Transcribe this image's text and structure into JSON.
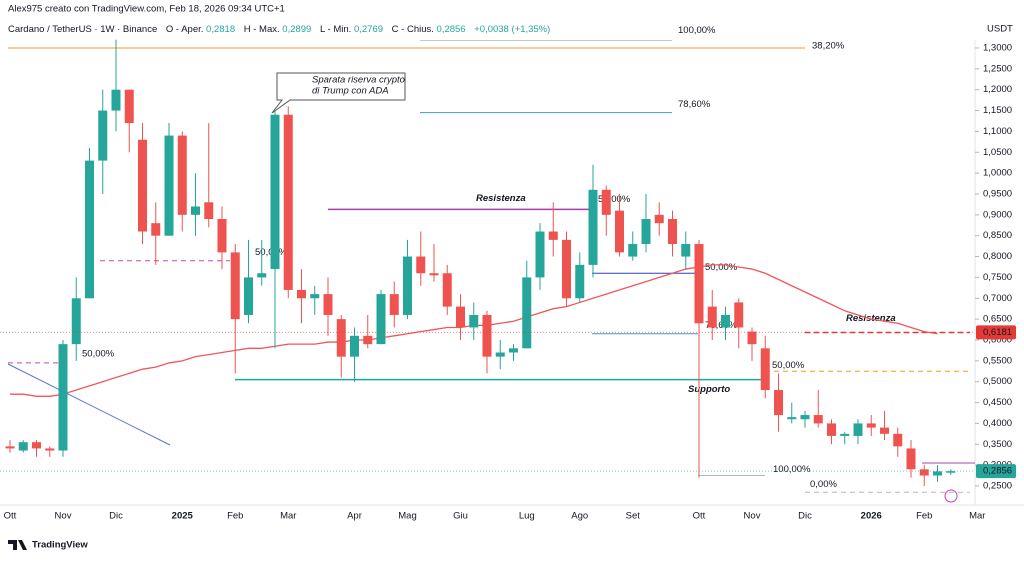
{
  "header": {
    "credit": "Alex975 creato con TradingView.com, Feb 18, 2026 09:34 UTC+1",
    "symbol": "Cardano / TetherUS · 1W · Binance",
    "open_label": "O - Aper.",
    "open": "0,2818",
    "high_label": "H - Max.",
    "high": "0,2899",
    "low_label": "L - Min.",
    "low": "0,2769",
    "close_label": "C - Chius.",
    "close": "0,2856",
    "change": "+0,0038 (+1,35%)"
  },
  "chart_data": {
    "type": "candlestick",
    "axis_unit": "USDT",
    "categories": [
      "Ott",
      null,
      null,
      null,
      "Nov",
      null,
      null,
      null,
      "Dic",
      null,
      null,
      null,
      null,
      "2025",
      null,
      null,
      null,
      "Feb",
      null,
      null,
      null,
      "Mar",
      null,
      null,
      null,
      null,
      "Apr",
      null,
      null,
      null,
      "Mag",
      null,
      null,
      null,
      "Giu",
      null,
      null,
      null,
      null,
      "Lug",
      null,
      null,
      null,
      "Ago",
      null,
      null,
      null,
      "Set",
      null,
      null,
      null,
      null,
      "Ott",
      null,
      null,
      null,
      "Nov",
      null,
      null,
      null,
      "Dic",
      null,
      null,
      null,
      null,
      "2026",
      null,
      null,
      null,
      "Feb",
      null,
      null,
      null,
      "Mar"
    ],
    "open": [
      0.345,
      0.335,
      0.355,
      0.34,
      0.335,
      0.59,
      0.7,
      1.03,
      1.15,
      1.2,
      1.08,
      0.88,
      0.85,
      1.09,
      0.9,
      0.93,
      0.89,
      0.81,
      0.66,
      0.75,
      0.77,
      1.14,
      0.72,
      0.7,
      0.71,
      0.65,
      0.56,
      0.61,
      0.59,
      0.71,
      0.66,
      0.8,
      0.76,
      0.76,
      0.68,
      0.63,
      0.66,
      0.56,
      0.57,
      0.58,
      0.75,
      0.86,
      0.84,
      0.7,
      0.78,
      0.96,
      0.91,
      0.8,
      0.83,
      0.9,
      0.89,
      0.8,
      0.83,
      0.68,
      0.63,
      0.69,
      0.62,
      0.58,
      0.48,
      0.41,
      0.41,
      0.42,
      0.4,
      0.37,
      0.37,
      0.4,
      0.39,
      0.375,
      0.34,
      0.29,
      0.275,
      0.2818,
      null,
      null
    ],
    "high": [
      0.36,
      0.36,
      0.36,
      0.345,
      0.6,
      0.75,
      1.06,
      1.2,
      1.32,
      1.2,
      1.12,
      0.93,
      1.12,
      1.1,
      1.0,
      1.12,
      0.92,
      0.83,
      0.84,
      0.84,
      1.15,
      1.16,
      0.77,
      0.73,
      0.75,
      0.66,
      0.63,
      0.66,
      0.72,
      0.74,
      0.84,
      0.86,
      0.83,
      0.78,
      0.71,
      0.69,
      0.67,
      0.6,
      0.59,
      0.79,
      0.88,
      0.93,
      0.86,
      0.81,
      1.02,
      0.97,
      0.95,
      0.86,
      0.95,
      0.93,
      0.91,
      0.86,
      0.84,
      0.72,
      0.68,
      0.7,
      0.63,
      0.61,
      0.52,
      0.45,
      0.43,
      0.48,
      0.41,
      0.38,
      0.41,
      0.42,
      0.43,
      0.39,
      0.36,
      0.3,
      0.3,
      0.2899,
      null,
      null
    ],
    "low": [
      0.33,
      0.33,
      0.32,
      0.32,
      0.32,
      0.55,
      0.7,
      0.95,
      1.1,
      1.05,
      0.83,
      0.78,
      0.85,
      0.86,
      0.85,
      0.87,
      0.77,
      0.52,
      0.64,
      0.73,
      0.58,
      0.7,
      0.64,
      0.66,
      0.61,
      0.51,
      0.5,
      0.58,
      0.59,
      0.63,
      0.65,
      0.73,
      0.74,
      0.66,
      0.6,
      0.6,
      0.52,
      0.53,
      0.55,
      0.58,
      0.72,
      0.8,
      0.68,
      0.69,
      0.75,
      0.85,
      0.8,
      0.79,
      0.81,
      0.85,
      0.8,
      0.77,
      0.27,
      0.6,
      0.6,
      0.58,
      0.55,
      0.46,
      0.38,
      0.4,
      0.39,
      0.39,
      0.35,
      0.35,
      0.35,
      0.37,
      0.36,
      0.32,
      0.27,
      0.25,
      0.26,
      0.2769,
      null,
      null
    ],
    "close": [
      0.34,
      0.355,
      0.34,
      0.335,
      0.59,
      0.7,
      1.03,
      1.15,
      1.2,
      1.12,
      0.86,
      0.85,
      1.09,
      0.9,
      0.92,
      0.89,
      0.81,
      0.65,
      0.75,
      0.76,
      1.14,
      0.72,
      0.7,
      0.71,
      0.66,
      0.56,
      0.61,
      0.59,
      0.71,
      0.66,
      0.8,
      0.76,
      0.755,
      0.68,
      0.63,
      0.66,
      0.56,
      0.57,
      0.58,
      0.75,
      0.86,
      0.84,
      0.7,
      0.78,
      0.96,
      0.9,
      0.81,
      0.83,
      0.89,
      0.88,
      0.83,
      0.83,
      0.64,
      0.63,
      0.66,
      0.63,
      0.59,
      0.48,
      0.42,
      0.415,
      0.42,
      0.4,
      0.37,
      0.375,
      0.4,
      0.39,
      0.375,
      0.345,
      0.29,
      0.275,
      0.285,
      0.2856,
      null,
      null
    ],
    "up_color": "#26a69a",
    "down_color": "#ef5350",
    "moving_average": {
      "color": "#f0565a",
      "values": [
        0.47,
        0.47,
        0.465,
        0.465,
        0.47,
        0.48,
        0.49,
        0.5,
        0.51,
        0.52,
        0.53,
        0.535,
        0.545,
        0.55,
        0.56,
        0.565,
        0.57,
        0.575,
        0.58,
        0.58,
        0.585,
        0.59,
        0.59,
        0.59,
        0.595,
        0.595,
        0.6,
        0.6,
        0.605,
        0.61,
        0.615,
        0.62,
        0.625,
        0.63,
        0.63,
        0.635,
        0.635,
        0.64,
        0.645,
        0.655,
        0.665,
        0.675,
        0.68,
        0.69,
        0.7,
        0.71,
        0.72,
        0.73,
        0.74,
        0.75,
        0.76,
        0.77,
        0.775,
        0.78,
        0.78,
        0.775,
        0.77,
        0.76,
        0.745,
        0.73,
        0.715,
        0.7,
        0.685,
        0.67,
        0.66,
        0.65,
        0.645,
        0.64,
        0.63,
        0.62,
        0.615,
        null,
        null,
        null
      ]
    },
    "ylim": [
      0.2164,
      1.415
    ],
    "yticks": [
      {
        "value": 0.25,
        "label": "0,2500"
      },
      {
        "value": 0.3,
        "label": "0,3000"
      },
      {
        "value": 0.35,
        "label": "0,3500"
      },
      {
        "value": 0.4,
        "label": "0,4000"
      },
      {
        "value": 0.45,
        "label": "0,4500"
      },
      {
        "value": 0.5,
        "label": "0,5000"
      },
      {
        "value": 0.55,
        "label": "0,5500"
      },
      {
        "value": 0.6,
        "label": "0,6000"
      },
      {
        "value": 0.65,
        "label": "0,6500"
      },
      {
        "value": 0.7,
        "label": "0,7000"
      },
      {
        "value": 0.75,
        "label": "0,7500"
      },
      {
        "value": 0.8,
        "label": "0,8000"
      },
      {
        "value": 0.85,
        "label": "0,8500"
      },
      {
        "value": 0.9,
        "label": "0,9000"
      },
      {
        "value": 0.95,
        "label": "0,9500"
      },
      {
        "value": 1.0,
        "label": "1,0000"
      },
      {
        "value": 1.05,
        "label": "1,0500"
      },
      {
        "value": 1.1,
        "label": "1,1000"
      },
      {
        "value": 1.15,
        "label": "1,1500"
      },
      {
        "value": 1.2,
        "label": "1,2000"
      },
      {
        "value": 1.25,
        "label": "1,2500"
      },
      {
        "value": 1.3,
        "label": "1,3000"
      }
    ],
    "price_labels": [
      {
        "value": 0.6181,
        "label": "0,6181",
        "color": "#e53935"
      },
      {
        "value": 0.2856,
        "label": "0,2856",
        "color": "#26a69a"
      }
    ],
    "levels": [
      {
        "price": 1.3,
        "label": "38,20%",
        "color": "#f59a23"
      },
      {
        "price": 1.318,
        "label": "100,00%",
        "color": "#c8c8c8"
      },
      {
        "price": 1.145,
        "label": "78,60%",
        "color": "#3d9ccc"
      },
      {
        "price": 0.913,
        "label": "Resistenza",
        "color": "#a73aa8"
      },
      {
        "price": 0.913,
        "label": "50,00%",
        "color": "#a73aa8"
      },
      {
        "price": 0.79,
        "label": "50,00%",
        "color": "#c04ab0",
        "dashed": true
      },
      {
        "price": 0.545,
        "label": "50,00%",
        "color": "#c04ab0",
        "dashed": true
      },
      {
        "price": 0.505,
        "label": "Supporto",
        "color": "#1aa89a"
      },
      {
        "price": 0.76,
        "label": "50,00%",
        "color": "#2c3ec0"
      },
      {
        "price": 0.615,
        "label": "78,60%",
        "color": "#3d9ccc"
      },
      {
        "price": 0.275,
        "label": "100,00%",
        "color": "#b8b8b8"
      },
      {
        "price": 0.235,
        "label": "0,00%",
        "color": "#b8b8b8",
        "dashed": true
      },
      {
        "price": 0.525,
        "label": "50,00%",
        "color": "#f59a23",
        "dashed": true
      },
      {
        "price": 0.618,
        "label": "Resistenza",
        "color": "#e53935",
        "dashed": true
      },
      {
        "price": 0.305,
        "color": "#9c4ab0"
      }
    ],
    "note": [
      "Sparata riserva crypto",
      "di Trump con ADA"
    ]
  },
  "logo": "TradingView"
}
